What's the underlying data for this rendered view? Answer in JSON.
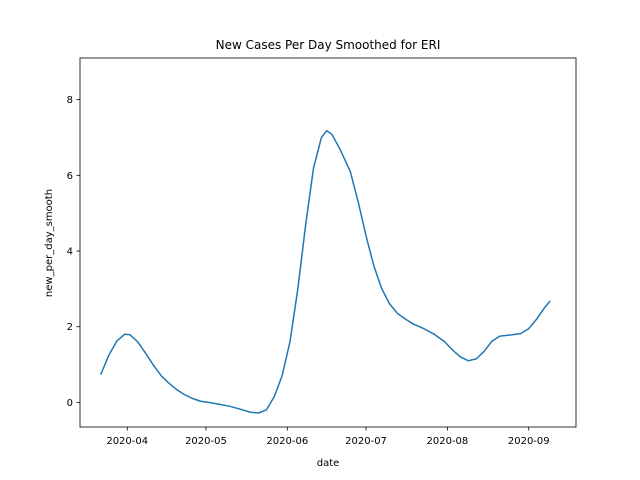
{
  "chart_data": {
    "type": "line",
    "title": "New Cases Per Day Smoothed for ERI",
    "xlabel": "date",
    "ylabel": "new_per_day_smooth",
    "xlim": [
      "2020-03-14",
      "2020-09-19"
    ],
    "ylim": [
      -0.65,
      9.1
    ],
    "x_ticks": [
      "2020-04-01",
      "2020-05-01",
      "2020-06-01",
      "2020-07-01",
      "2020-08-01",
      "2020-09-01"
    ],
    "x_tick_labels": [
      "2020-04",
      "2020-05",
      "2020-06",
      "2020-07",
      "2020-08",
      "2020-09"
    ],
    "y_ticks": [
      0,
      2,
      4,
      6,
      8
    ],
    "y_tick_labels": [
      "0",
      "2",
      "4",
      "6",
      "8"
    ],
    "grid": false,
    "line_color": "#1f77b4",
    "series": [
      {
        "points": [
          [
            "2020-03-22",
            0.75
          ],
          [
            "2020-03-25",
            1.25
          ],
          [
            "2020-03-28",
            1.62
          ],
          [
            "2020-03-31",
            1.8
          ],
          [
            "2020-04-02",
            1.79
          ],
          [
            "2020-04-05",
            1.6
          ],
          [
            "2020-04-08",
            1.3
          ],
          [
            "2020-04-11",
            0.98
          ],
          [
            "2020-04-14",
            0.7
          ],
          [
            "2020-04-17",
            0.5
          ],
          [
            "2020-04-20",
            0.33
          ],
          [
            "2020-04-23",
            0.2
          ],
          [
            "2020-04-26",
            0.1
          ],
          [
            "2020-04-29",
            0.03
          ],
          [
            "2020-05-02",
            0.0
          ],
          [
            "2020-05-06",
            -0.05
          ],
          [
            "2020-05-10",
            -0.1
          ],
          [
            "2020-05-14",
            -0.18
          ],
          [
            "2020-05-18",
            -0.26
          ],
          [
            "2020-05-21",
            -0.28
          ],
          [
            "2020-05-24",
            -0.2
          ],
          [
            "2020-05-27",
            0.15
          ],
          [
            "2020-05-30",
            0.7
          ],
          [
            "2020-06-02",
            1.6
          ],
          [
            "2020-06-05",
            3.0
          ],
          [
            "2020-06-08",
            4.7
          ],
          [
            "2020-06-11",
            6.2
          ],
          [
            "2020-06-14",
            7.0
          ],
          [
            "2020-06-16",
            7.18
          ],
          [
            "2020-06-18",
            7.08
          ],
          [
            "2020-06-21",
            6.7
          ],
          [
            "2020-06-25",
            6.1
          ],
          [
            "2020-06-28",
            5.3
          ],
          [
            "2020-07-01",
            4.4
          ],
          [
            "2020-07-04",
            3.6
          ],
          [
            "2020-07-07",
            3.0
          ],
          [
            "2020-07-10",
            2.6
          ],
          [
            "2020-07-13",
            2.35
          ],
          [
            "2020-07-16",
            2.2
          ],
          [
            "2020-07-19",
            2.07
          ],
          [
            "2020-07-23",
            1.95
          ],
          [
            "2020-07-27",
            1.8
          ],
          [
            "2020-07-31",
            1.6
          ],
          [
            "2020-08-03",
            1.38
          ],
          [
            "2020-08-06",
            1.2
          ],
          [
            "2020-08-09",
            1.1
          ],
          [
            "2020-08-12",
            1.15
          ],
          [
            "2020-08-15",
            1.35
          ],
          [
            "2020-08-18",
            1.62
          ],
          [
            "2020-08-21",
            1.75
          ],
          [
            "2020-08-25",
            1.78
          ],
          [
            "2020-08-29",
            1.82
          ],
          [
            "2020-09-01",
            1.95
          ],
          [
            "2020-09-04",
            2.2
          ],
          [
            "2020-09-07",
            2.5
          ],
          [
            "2020-09-09",
            2.67
          ]
        ]
      }
    ]
  }
}
